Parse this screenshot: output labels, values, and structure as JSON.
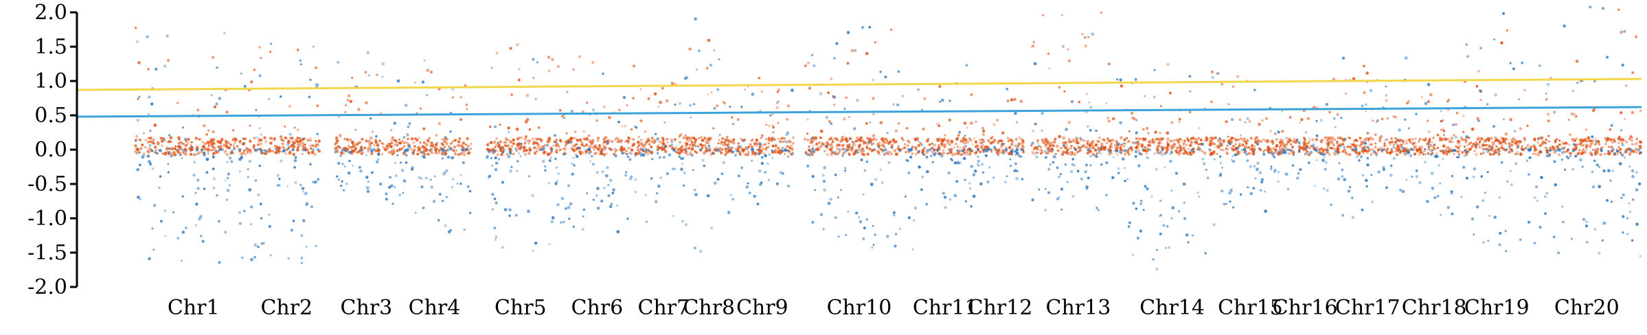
{
  "chart_data": {
    "type": "scatter",
    "title": "",
    "xlabel": "",
    "ylabel": "",
    "ylim": [
      -2.0,
      2.0
    ],
    "y_ticks": [
      {
        "value": 2.0,
        "label": "2.0"
      },
      {
        "value": 1.5,
        "label": "1.5"
      },
      {
        "value": 1.0,
        "label": "1.0"
      },
      {
        "value": 0.5,
        "label": "0.5"
      },
      {
        "value": 0.0,
        "label": "0.0"
      },
      {
        "value": -0.5,
        "label": "-0.5"
      },
      {
        "value": -1.0,
        "label": "-1.0"
      },
      {
        "value": -1.5,
        "label": "-1.5"
      },
      {
        "value": -2.0,
        "label": "-2.0"
      }
    ],
    "categories": [
      "Chr1",
      "Chr2",
      "Chr3",
      "Chr4",
      "Chr5",
      "Chr6",
      "Chr7",
      "Chr8",
      "Chr9",
      "Chr10",
      "Chr11",
      "Chr12",
      "Chr13",
      "Chr14",
      "Chr15",
      "Chr16",
      "Chr17",
      "Chr18",
      "Chr19",
      "Chr20"
    ],
    "regions": [
      {
        "chr": "Chr1",
        "x": [
          0.037,
          0.112
        ],
        "peak": 1.9,
        "trough": -1.7
      },
      {
        "chr": "Chr2",
        "x": [
          0.113,
          0.155
        ],
        "peak": 1.7,
        "trough": -1.9
      },
      {
        "chr": "Chr3",
        "x": [
          0.165,
          0.205
        ],
        "peak": 1.5,
        "trough": -0.8
      },
      {
        "chr": "Chr4",
        "x": [
          0.205,
          0.252
        ],
        "peak": 1.3,
        "trough": -1.2
      },
      {
        "chr": "Chr5",
        "x": [
          0.262,
          0.305
        ],
        "peak": 1.6,
        "trough": -1.5
      },
      {
        "chr": "Chr6",
        "x": [
          0.305,
          0.36
        ],
        "peak": 1.4,
        "trough": -1.2
      },
      {
        "chr": "Chr7",
        "x": [
          0.36,
          0.39
        ],
        "peak": 1.1,
        "trough": -1.1
      },
      {
        "chr": "Chr8",
        "x": [
          0.39,
          0.418
        ],
        "peak": 2.0,
        "trough": -1.5
      },
      {
        "chr": "Chr9",
        "x": [
          0.418,
          0.458
        ],
        "peak": 1.2,
        "trough": -0.9
      },
      {
        "chr": "Chr10",
        "x": [
          0.465,
          0.535
        ],
        "peak": 1.8,
        "trough": -1.5
      },
      {
        "chr": "Chr11",
        "x": [
          0.535,
          0.575
        ],
        "peak": 1.5,
        "trough": -1.0
      },
      {
        "chr": "Chr12",
        "x": [
          0.575,
          0.605
        ],
        "peak": 0.9,
        "trough": -0.5
      },
      {
        "chr": "Chr13",
        "x": [
          0.61,
          0.67
        ],
        "peak": 2.0,
        "trough": -1.0
      },
      {
        "chr": "Chr14",
        "x": [
          0.67,
          0.73
        ],
        "peak": 1.3,
        "trough": -1.8
      },
      {
        "chr": "Chr15",
        "x": [
          0.73,
          0.77
        ],
        "peak": 1.1,
        "trough": -0.9
      },
      {
        "chr": "Chr16",
        "x": [
          0.77,
          0.8
        ],
        "peak": 0.7,
        "trough": -0.6
      },
      {
        "chr": "Chr17",
        "x": [
          0.8,
          0.85
        ],
        "peak": 1.4,
        "trough": -1.0
      },
      {
        "chr": "Chr18",
        "x": [
          0.85,
          0.885
        ],
        "peak": 1.0,
        "trough": -1.0
      },
      {
        "chr": "Chr19",
        "x": [
          0.885,
          0.93
        ],
        "peak": 2.0,
        "trough": -1.6
      },
      {
        "chr": "Chr20",
        "x": [
          0.93,
          1.0
        ],
        "peak": 2.1,
        "trough": -1.6
      }
    ],
    "threshold_lines": [
      {
        "color": "#f2d64c",
        "start": 0.87,
        "end": 1.03
      },
      {
        "color": "#3ba3d9",
        "start": 0.48,
        "end": 0.62
      }
    ],
    "colors": {
      "positive": "#e2561a",
      "negative": "#2c78c0",
      "axis": "#000000"
    },
    "grid": false,
    "legend": "none"
  }
}
